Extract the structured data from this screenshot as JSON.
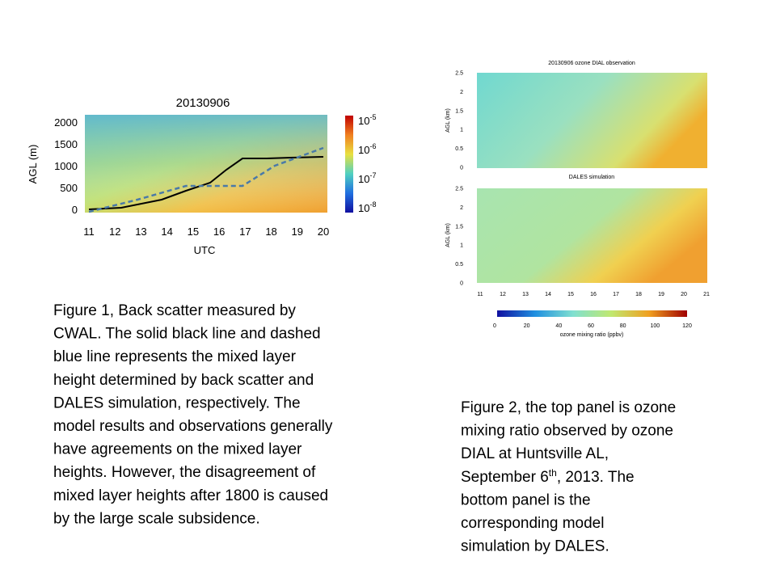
{
  "figure1": {
    "title": "20130906",
    "y_label": "AGL (m)",
    "x_label": "UTC",
    "yticks": [
      "0",
      "500",
      "1000",
      "1500",
      "2000"
    ],
    "xticks": [
      "11",
      "12",
      "13",
      "14",
      "15",
      "16",
      "17",
      "18",
      "19",
      "20"
    ],
    "colorbar_ticks": [
      {
        "base": "10",
        "exp": "-5"
      },
      {
        "base": "10",
        "exp": "-6"
      },
      {
        "base": "10",
        "exp": "-7"
      },
      {
        "base": "10",
        "exp": "-8"
      }
    ]
  },
  "caption1": [
    "Figure 1, Back scatter measured by",
    "CWAL. The solid black line and dashed",
    "blue line represents the mixed layer",
    "height determined by back scatter and",
    "DALES simulation, respectively. The",
    "model results and observations generally",
    "have agreements on the mixed layer",
    "heights. However, the disagreement of",
    "mixed layer heights after 1800 is caused",
    "by the large scale subsidence."
  ],
  "figure2": {
    "top_title": "20130906 ozone DIAL observation",
    "bottom_title": "DALES simulation",
    "y_label": "AGL (km)",
    "yticks": [
      "0",
      "0.5",
      "1",
      "1.5",
      "2",
      "2.5"
    ],
    "xticks": [
      "11",
      "12",
      "13",
      "14",
      "15",
      "16",
      "17",
      "18",
      "19",
      "20",
      "21"
    ],
    "colorbar_ticks": [
      "0",
      "20",
      "40",
      "60",
      "80",
      "100",
      "120"
    ],
    "colorbar_label": "ozone mixing ratio (ppbv)"
  },
  "caption2": {
    "line1": "Figure 2, the top panel is ozone",
    "line2": "mixing ratio observed by ozone",
    "line3": "DIAL at Huntsville AL,",
    "line4": [
      "September 6",
      "th",
      ", 2013. The"
    ],
    "line5": "bottom panel is the",
    "line6": "corresponding model",
    "line7": "simulation by DALES."
  }
}
